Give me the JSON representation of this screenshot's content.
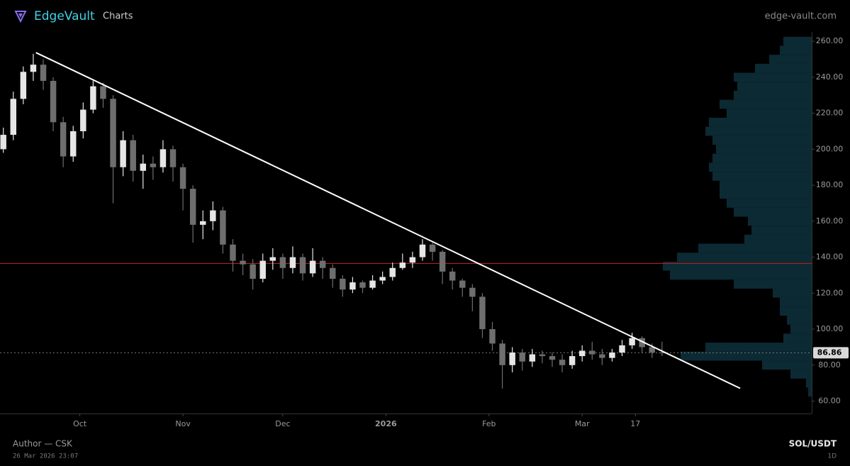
{
  "header": {
    "brand": "EdgeVault",
    "section": "Charts",
    "site": "edge-vault.com"
  },
  "footer": {
    "author": "Author — CSK",
    "timestamp": "26 Mar 2026 23:07",
    "symbol": "SOL/USDT",
    "interval": "1D"
  },
  "chart_data": {
    "type": "candlestick",
    "xlim": [
      -24,
      220
    ],
    "ylim": [
      53.1,
      265.2
    ],
    "xticks": [
      {
        "value": 0,
        "label": "Oct"
      },
      {
        "value": 31,
        "label": "Nov"
      },
      {
        "value": 61,
        "label": "Dec"
      },
      {
        "value": 92,
        "label": "2026"
      },
      {
        "value": 123,
        "label": "Feb"
      },
      {
        "value": 151,
        "label": "Mar"
      },
      {
        "value": 167,
        "label": "17"
      }
    ],
    "yticks": [
      {
        "value": 60,
        "label": "60.00"
      },
      {
        "value": 80,
        "label": "80.00"
      },
      {
        "value": 100,
        "label": "100.00"
      },
      {
        "value": 120,
        "label": "120.00"
      },
      {
        "value": 140,
        "label": "140.00"
      },
      {
        "value": 160,
        "label": "160.00"
      },
      {
        "value": 180,
        "label": "180.00"
      },
      {
        "value": 200,
        "label": "200.00"
      },
      {
        "value": 220,
        "label": "220.00"
      },
      {
        "value": 240,
        "label": "240.00"
      },
      {
        "value": 260,
        "label": "260.00"
      }
    ],
    "up_color": "#e6e6e6",
    "down_color": "#6e6e6e",
    "x": [
      -23,
      -20,
      -17,
      -14,
      -11,
      -8,
      -5,
      -2,
      1,
      4,
      7,
      10,
      13,
      16,
      19,
      22,
      25,
      28,
      31,
      34,
      37,
      40,
      43,
      46,
      49,
      52,
      55,
      58,
      61,
      64,
      67,
      70,
      73,
      76,
      79,
      82,
      85,
      88,
      91,
      94,
      97,
      100,
      103,
      106,
      109,
      112,
      115,
      118,
      121,
      124,
      127,
      130,
      133,
      136,
      139,
      142,
      145,
      148,
      151,
      154,
      157,
      160,
      163,
      166,
      169,
      172,
      175
    ],
    "open": [
      200,
      208,
      228,
      243,
      247,
      238,
      215,
      196,
      210,
      222,
      235,
      228,
      190,
      205,
      188,
      192,
      190,
      200,
      190,
      178,
      158,
      160,
      166,
      147,
      138,
      136,
      128,
      138,
      140,
      134,
      140,
      131,
      138,
      134,
      128,
      122,
      126,
      123,
      127,
      129,
      134,
      137,
      140,
      147,
      143,
      132,
      127,
      123,
      118,
      100,
      92,
      80,
      87,
      82,
      86,
      85,
      83,
      80,
      85,
      88,
      86,
      84,
      87,
      91,
      95,
      90,
      87
    ],
    "high": [
      212,
      232,
      246,
      253,
      250,
      240,
      218,
      213,
      226,
      238,
      237,
      230,
      210,
      208,
      197,
      196,
      205,
      202,
      192,
      180,
      166,
      171,
      168,
      150,
      142,
      139,
      142,
      145,
      142,
      146,
      142,
      145,
      140,
      136,
      130,
      129,
      127,
      130,
      132,
      137,
      142,
      143,
      150,
      148,
      144,
      134,
      128,
      125,
      120,
      104,
      94,
      90,
      89,
      89,
      88,
      87,
      86,
      88,
      91,
      93,
      89,
      89,
      94,
      98,
      96,
      92,
      93
    ],
    "low": [
      198,
      205,
      225,
      238,
      233,
      210,
      190,
      193,
      206,
      220,
      223,
      170,
      185,
      182,
      178,
      183,
      187,
      182,
      166,
      148,
      150,
      155,
      142,
      132,
      130,
      122,
      126,
      133,
      128,
      131,
      127,
      129,
      128,
      123,
      118,
      120,
      120,
      122,
      125,
      127,
      133,
      134,
      138,
      138,
      125,
      122,
      118,
      110,
      95,
      88,
      67,
      76,
      77,
      79,
      81,
      79,
      76,
      78,
      82,
      83,
      80,
      82,
      85,
      89,
      87,
      84,
      85
    ],
    "close": [
      208,
      228,
      243,
      247,
      238,
      215,
      196,
      210,
      222,
      235,
      228,
      190,
      205,
      188,
      192,
      190,
      200,
      190,
      178,
      158,
      160,
      166,
      147,
      138,
      136,
      128,
      138,
      140,
      134,
      140,
      131,
      138,
      134,
      128,
      122,
      126,
      123,
      127,
      129,
      134,
      137,
      140,
      147,
      143,
      132,
      127,
      123,
      118,
      100,
      92,
      80,
      87,
      82,
      86,
      85,
      83,
      80,
      85,
      88,
      86,
      84,
      87,
      91,
      95,
      90,
      87,
      86.86
    ],
    "last_price": 86.86,
    "horizontal_level": 136.5,
    "trendline": {
      "x": [
        -13.2,
        198.5
      ],
      "y": [
        253.7,
        67.1
      ],
      "color": "#ffffff"
    },
    "volume_profile": {
      "color": "#0c2a33",
      "xlim": [
        0,
        240
      ],
      "levels": [
        65,
        70,
        75,
        80,
        85,
        90,
        95,
        100,
        105,
        110,
        115,
        120,
        125,
        130,
        135,
        140,
        145,
        150,
        155,
        160,
        165,
        170,
        175,
        180,
        185,
        190,
        195,
        200,
        205,
        210,
        215,
        220,
        225,
        230,
        235,
        240,
        245,
        250,
        255,
        260
      ],
      "volumes": [
        5,
        8,
        30,
        70,
        185,
        150,
        40,
        30,
        35,
        45,
        45,
        55,
        110,
        200,
        210,
        190,
        160,
        95,
        85,
        90,
        110,
        120,
        130,
        130,
        140,
        145,
        140,
        135,
        140,
        150,
        145,
        120,
        130,
        110,
        105,
        110,
        80,
        60,
        45,
        40
      ]
    }
  }
}
